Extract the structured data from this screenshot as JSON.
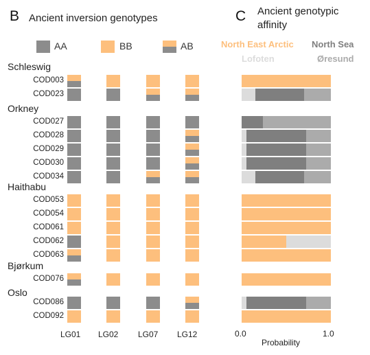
{
  "panel_b": {
    "letter": "B",
    "title": "Ancient inversion genotypes",
    "legend": [
      {
        "key": "AA",
        "label": "AA"
      },
      {
        "key": "BB",
        "label": "BB"
      },
      {
        "key": "AB",
        "label": "AB"
      }
    ]
  },
  "panel_c": {
    "letter": "C",
    "title_line1": "Ancient genotypic",
    "title_line2": "affinity",
    "legend": {
      "nea": "North East Arctic",
      "ns": "North Sea",
      "lof": "Lofoten",
      "ore": "Øresund"
    }
  },
  "colors": {
    "AA": "#8c8c8c",
    "BB": "#fdbf7d",
    "North East Arctic": "#fdbf7d",
    "North Sea": "#7f7f7f",
    "Lofoten": "#dcdcdc",
    "Øresund": "#ababab"
  },
  "chart_data": [
    {
      "type": "heatmap",
      "title": "Ancient inversion genotypes",
      "columns": [
        "LG01",
        "LG02",
        "LG07",
        "LG12"
      ],
      "categories": [
        "AA",
        "BB",
        "AB"
      ],
      "groups": [
        {
          "name": "Schleswig",
          "samples": [
            {
              "id": "COD003",
              "genotypes": [
                "AB",
                "BB",
                "BB",
                "BB"
              ]
            },
            {
              "id": "COD023",
              "genotypes": [
                "AA",
                "AA",
                "AB",
                "AB"
              ]
            }
          ]
        },
        {
          "name": "Orkney",
          "samples": [
            {
              "id": "COD027",
              "genotypes": [
                "AA",
                "AA",
                "AA",
                "AA"
              ]
            },
            {
              "id": "COD028",
              "genotypes": [
                "AA",
                "AA",
                "AA",
                "AB"
              ]
            },
            {
              "id": "COD029",
              "genotypes": [
                "AA",
                "AA",
                "AA",
                "AB"
              ]
            },
            {
              "id": "COD030",
              "genotypes": [
                "AA",
                "AA",
                "AA",
                "AB"
              ]
            },
            {
              "id": "COD034",
              "genotypes": [
                "AA",
                "AA",
                "AB",
                "AB"
              ]
            }
          ]
        },
        {
          "name": "Haithabu",
          "samples": [
            {
              "id": "COD053",
              "genotypes": [
                "BB",
                "BB",
                "BB",
                "BB"
              ]
            },
            {
              "id": "COD054",
              "genotypes": [
                "BB",
                "BB",
                "BB",
                "BB"
              ]
            },
            {
              "id": "COD061",
              "genotypes": [
                "BB",
                "BB",
                "BB",
                "BB"
              ]
            },
            {
              "id": "COD062",
              "genotypes": [
                "AA",
                "BB",
                "BB",
                "BB"
              ]
            },
            {
              "id": "COD063",
              "genotypes": [
                "AB",
                "BB",
                "BB",
                "BB"
              ]
            }
          ]
        },
        {
          "name": "Bjørkum",
          "samples": [
            {
              "id": "COD076",
              "genotypes": [
                "AB",
                "BB",
                "BB",
                "BB"
              ]
            }
          ]
        },
        {
          "name": "Oslo",
          "samples": [
            {
              "id": "COD086",
              "genotypes": [
                "AA",
                "AA",
                "AA",
                "AB"
              ]
            },
            {
              "id": "COD092",
              "genotypes": [
                "BB",
                "BB",
                "BB",
                "BB"
              ]
            }
          ]
        }
      ]
    },
    {
      "type": "bar",
      "stacked": true,
      "orientation": "horizontal",
      "title": "Ancient genotypic affinity",
      "xlabel": "Probability",
      "xlim": [
        0.0,
        1.0
      ],
      "xticks": [
        "0.0",
        "1.0"
      ],
      "series_order": [
        "Lofoten",
        "North Sea",
        "Øresund",
        "North East Arctic"
      ],
      "rows": [
        {
          "id": "COD003",
          "values": {
            "North East Arctic": 1.0
          }
        },
        {
          "id": "COD023",
          "values": {
            "Lofoten": 0.15,
            "North Sea": 0.55,
            "Øresund": 0.3
          }
        },
        {
          "id": "COD027",
          "values": {
            "North Sea": 0.24,
            "Øresund": 0.76
          }
        },
        {
          "id": "COD028",
          "values": {
            "Lofoten": 0.05,
            "North Sea": 0.67,
            "Øresund": 0.28
          }
        },
        {
          "id": "COD029",
          "values": {
            "Lofoten": 0.05,
            "North Sea": 0.67,
            "Øresund": 0.28
          }
        },
        {
          "id": "COD030",
          "values": {
            "Lofoten": 0.05,
            "North Sea": 0.67,
            "Øresund": 0.28
          }
        },
        {
          "id": "COD034",
          "values": {
            "Lofoten": 0.15,
            "North Sea": 0.55,
            "Øresund": 0.3
          }
        },
        {
          "id": "COD053",
          "values": {
            "North East Arctic": 1.0
          }
        },
        {
          "id": "COD054",
          "values": {
            "North East Arctic": 1.0
          }
        },
        {
          "id": "COD061",
          "values": {
            "North East Arctic": 1.0
          }
        },
        {
          "id": "COD062",
          "values": {
            "North East Arctic": 0.5,
            "Lofoten": 0.5
          }
        },
        {
          "id": "COD063",
          "values": {
            "North East Arctic": 1.0
          }
        },
        {
          "id": "COD076",
          "values": {
            "North East Arctic": 1.0
          }
        },
        {
          "id": "COD086",
          "values": {
            "Lofoten": 0.05,
            "North Sea": 0.67,
            "Øresund": 0.28
          }
        },
        {
          "id": "COD092",
          "values": {
            "North East Arctic": 1.0
          }
        }
      ]
    }
  ]
}
